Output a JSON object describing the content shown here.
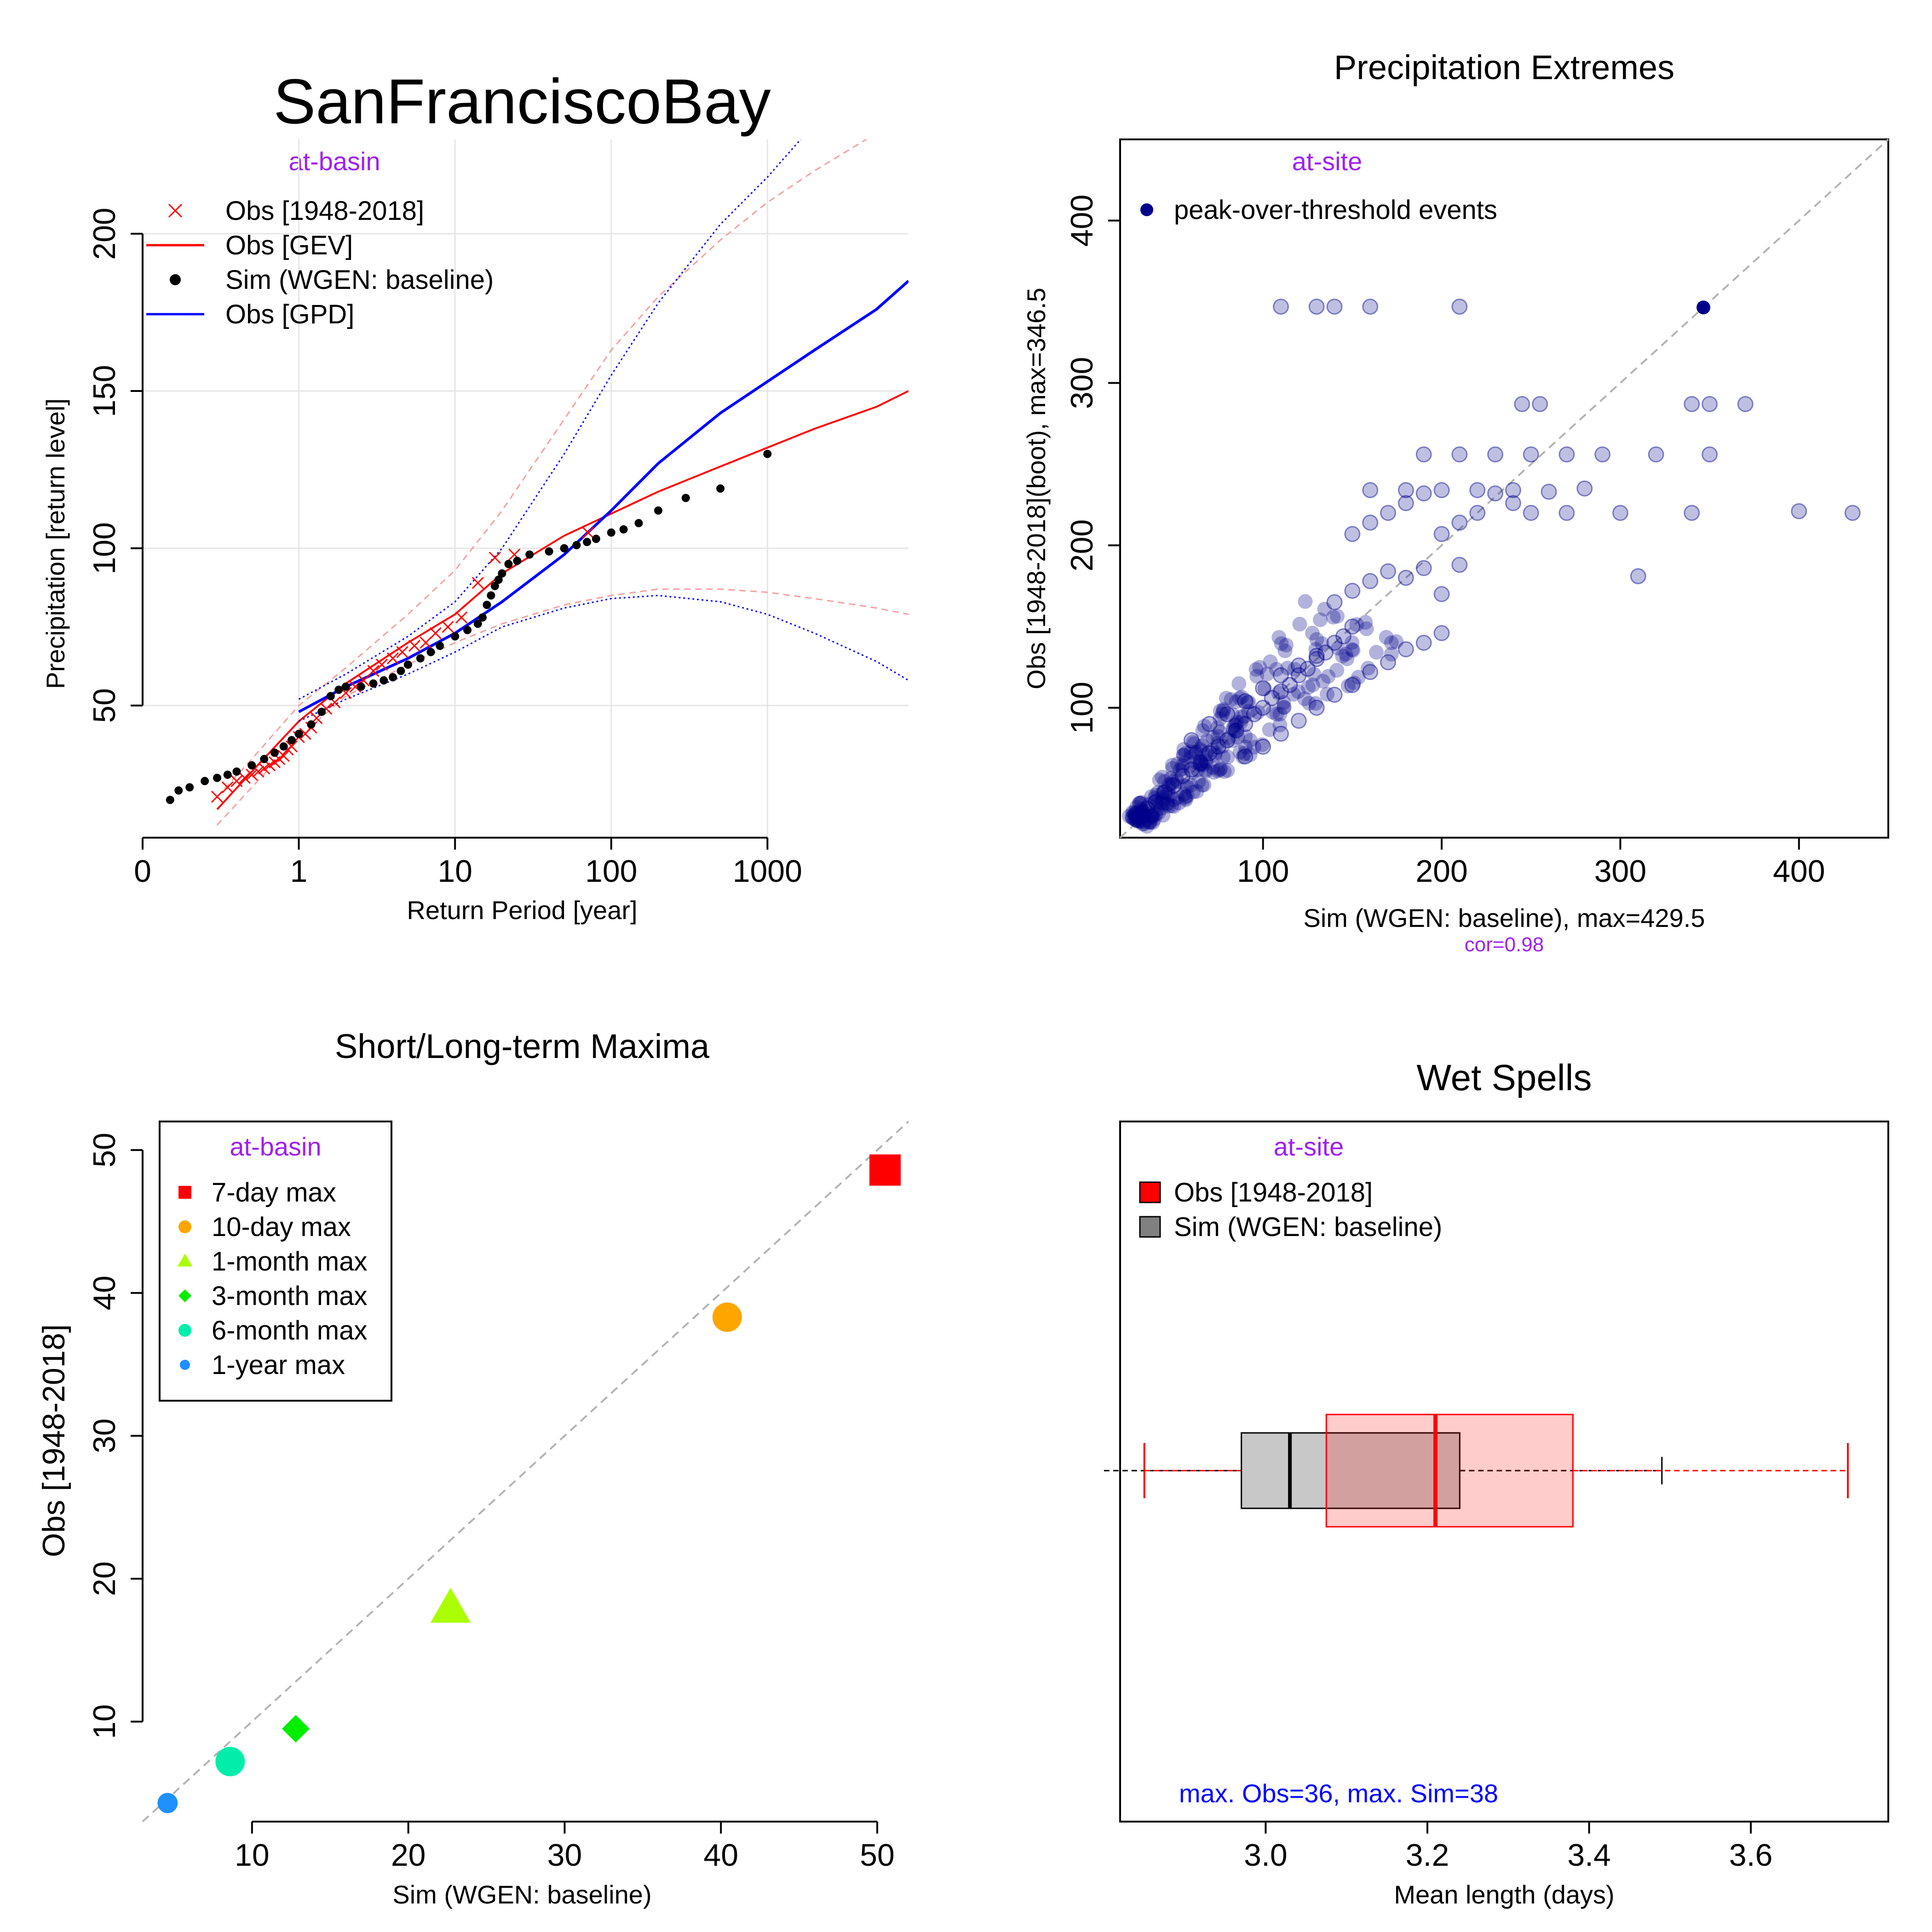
{
  "chart_data": [
    {
      "type": "line",
      "title": "SanFranciscoBay",
      "subtitle": "at-basin",
      "xlabel": "Return Period [year]",
      "ylabel": "Precipitation [return level]",
      "x_scale": "log",
      "x_ticks": [
        0.1,
        1,
        10,
        100,
        1000
      ],
      "x_tick_labels": [
        "0",
        "1",
        "10",
        "100",
        "1000"
      ],
      "xlim": [
        0.1,
        8000
      ],
      "y_ticks": [
        50,
        100,
        150,
        200
      ],
      "y_tick_labels": [
        "50",
        "100",
        "150",
        "200"
      ],
      "ylim": [
        8,
        230
      ],
      "grid": true,
      "legend_position": "top-left",
      "legend": [
        {
          "label": "Obs [1948-2018]",
          "symbol": "cross",
          "color": "#ff0000"
        },
        {
          "label": "Obs [GEV]",
          "symbol": "line",
          "color": "#ff0000"
        },
        {
          "label": "Sim (WGEN: baseline)",
          "symbol": "dot",
          "color": "#000000"
        },
        {
          "label": "Obs [GPD]",
          "symbol": "line",
          "color": "#0000ff"
        }
      ],
      "series": [
        {
          "name": "Obs [1948-2018]",
          "kind": "cross",
          "color": "#ff0000",
          "x": [
            0.3,
            0.35,
            0.4,
            0.45,
            0.5,
            0.55,
            0.6,
            0.65,
            0.7,
            0.75,
            0.8,
            0.85,
            0.9,
            1.0,
            1.1,
            1.2,
            1.3,
            1.5,
            1.7,
            2.0,
            2.3,
            2.6,
            3.0,
            3.4,
            4.0,
            4.6,
            5.5,
            6.5,
            7.5,
            9,
            11,
            14,
            18,
            24,
            71
          ],
          "y": [
            21,
            24,
            26,
            27,
            28,
            29,
            30,
            31,
            32,
            33,
            34,
            36,
            37,
            40,
            41,
            43,
            46,
            49,
            51,
            54,
            56,
            58,
            61,
            63,
            65,
            67,
            69,
            70,
            73,
            75,
            78,
            89,
            97,
            98,
            105
          ]
        },
        {
          "name": "Obs [GEV]",
          "kind": "line",
          "color": "#ff0000",
          "x": [
            0.3,
            0.5,
            1,
            2,
            5,
            10,
            20,
            50,
            100,
            200,
            500,
            1000,
            2000,
            5000,
            8000
          ],
          "y": [
            17,
            29,
            45,
            57,
            70,
            79,
            92,
            104,
            111,
            118,
            126,
            132,
            138,
            145,
            150
          ]
        },
        {
          "name": "GEV upper bound",
          "kind": "dashed",
          "color": "#f4a0a0",
          "x": [
            0.3,
            0.5,
            1,
            2,
            5,
            10,
            20,
            50,
            100,
            200,
            500,
            1000,
            2000,
            5000,
            8000
          ],
          "y": [
            21,
            33,
            50,
            62,
            79,
            93,
            112,
            141,
            163,
            180,
            198,
            210,
            220,
            232,
            240
          ]
        },
        {
          "name": "GEV lower bound",
          "kind": "dashed",
          "color": "#f4a0a0",
          "x": [
            0.3,
            0.5,
            1,
            2,
            5,
            10,
            20,
            50,
            100,
            200,
            500,
            1000,
            2000,
            5000,
            8000
          ],
          "y": [
            12,
            24,
            40,
            53,
            63,
            70,
            76,
            82,
            85,
            87,
            87,
            86,
            84,
            81,
            79
          ]
        },
        {
          "name": "Sim (WGEN: baseline)",
          "kind": "dots",
          "color": "#000000",
          "x": [
            0.15,
            0.17,
            0.2,
            0.25,
            0.3,
            0.35,
            0.4,
            0.5,
            0.6,
            0.7,
            0.8,
            0.9,
            1.0,
            1.2,
            1.4,
            1.6,
            1.8,
            2.0,
            2.5,
            3.0,
            3.5,
            4.0,
            4.5,
            5.0,
            6,
            7,
            8,
            10,
            12,
            14,
            15,
            16,
            17,
            18,
            19,
            20,
            22,
            25,
            30,
            40,
            50,
            60,
            70,
            80,
            100,
            120,
            150,
            200,
            300,
            500,
            1000
          ],
          "y": [
            20,
            23,
            24,
            26,
            27,
            28,
            29,
            31,
            33,
            35,
            37,
            39,
            41,
            44,
            48,
            53,
            55,
            56,
            56,
            57,
            58,
            59,
            61,
            63,
            65,
            67,
            69,
            72,
            74,
            76,
            78,
            82,
            85,
            88,
            90,
            92,
            95,
            96,
            98,
            99,
            100,
            101,
            102,
            103,
            105,
            106,
            108,
            112,
            116,
            119,
            130
          ]
        },
        {
          "name": "Obs [GPD]",
          "kind": "line",
          "color": "#0000ff",
          "x": [
            1,
            2,
            5,
            10,
            20,
            50,
            100,
            200,
            500,
            1000,
            2000,
            5000,
            8000
          ],
          "y": [
            48,
            56,
            65,
            73,
            83,
            98,
            112,
            127,
            143,
            153,
            163,
            176,
            185
          ]
        },
        {
          "name": "GPD upper bound",
          "kind": "dotted",
          "color": "#0000ff",
          "x": [
            1,
            2,
            5,
            10,
            20,
            50,
            100,
            200,
            500,
            1000,
            2000,
            3000
          ],
          "y": [
            52,
            60,
            72,
            83,
            100,
            130,
            155,
            178,
            203,
            218,
            235,
            250
          ]
        },
        {
          "name": "GPD lower bound",
          "kind": "dotted",
          "color": "#0000ff",
          "x": [
            1,
            2,
            5,
            10,
            20,
            50,
            100,
            200,
            500,
            1000,
            2000,
            5000,
            8000
          ],
          "y": [
            45,
            52,
            60,
            67,
            75,
            81,
            84,
            85,
            83,
            79,
            73,
            64,
            58
          ]
        }
      ]
    },
    {
      "type": "scatter",
      "title": "Precipitation Extremes",
      "subtitle": "at-site",
      "xlabel": "Sim (WGEN: baseline), max=429.5",
      "ylabel": "Obs [1948-2018](boot), max=346.5",
      "annotation": "cor=0.98",
      "xlim": [
        20,
        450
      ],
      "ylim": [
        20,
        450
      ],
      "x_ticks": [
        100,
        200,
        300,
        400
      ],
      "x_tick_labels": [
        "100",
        "200",
        "300",
        "400"
      ],
      "y_ticks": [
        100,
        200,
        300,
        400
      ],
      "y_tick_labels": [
        "100",
        "200",
        "300",
        "400"
      ],
      "reference_line": "y = x",
      "legend_position": "top-left",
      "legend": [
        {
          "label": "peak-over-threshold events",
          "symbol": "dot",
          "color": "#00008b"
        }
      ],
      "series": [
        {
          "name": "peak-over-threshold events",
          "color": "#00008b",
          "x": [
            30,
            35,
            40,
            45,
            50,
            55,
            60,
            65,
            70,
            75,
            80,
            85,
            90,
            95,
            100,
            105,
            110,
            115,
            120,
            125,
            130,
            135,
            140,
            145,
            150,
            60,
            70,
            80,
            90,
            100,
            110,
            120,
            130,
            90,
            100,
            110,
            120,
            130,
            140,
            150,
            160,
            170,
            180,
            190,
            200,
            140,
            150,
            160,
            170,
            180,
            190,
            200,
            210,
            150,
            160,
            170,
            180,
            190,
            200,
            210,
            220,
            230,
            240,
            250,
            270,
            300,
            340,
            400,
            430,
            160,
            180,
            200,
            220,
            240,
            260,
            280,
            310,
            190,
            210,
            230,
            250,
            270,
            290,
            320,
            350,
            245,
            255,
            340,
            350,
            370,
            110,
            140,
            130,
            160,
            210
          ],
          "y": [
            32,
            38,
            42,
            48,
            52,
            58,
            62,
            66,
            72,
            76,
            80,
            86,
            90,
            96,
            100,
            106,
            110,
            114,
            120,
            124,
            130,
            134,
            140,
            144,
            150,
            80,
            90,
            96,
            104,
            112,
            120,
            126,
            132,
            70,
            76,
            84,
            92,
            100,
            108,
            114,
            122,
            128,
            136,
            140,
            146,
            165,
            172,
            178,
            184,
            180,
            186,
            170,
            188,
            207,
            214,
            220,
            226,
            232,
            207,
            214,
            220,
            232,
            226,
            220,
            220,
            220,
            220,
            221,
            220,
            234,
            234,
            234,
            234,
            234,
            233,
            235,
            181,
            256,
            256,
            256,
            256,
            256,
            256,
            256,
            256,
            287,
            287,
            287,
            287,
            287,
            347,
            347,
            347,
            347,
            347
          ]
        }
      ]
    },
    {
      "type": "scatter",
      "title": "Short/Long-term Maxima",
      "subtitle": "at-basin",
      "xlabel": "Sim (WGEN: baseline)",
      "ylabel": "Obs [1948-2018]",
      "xlim": [
        3,
        52
      ],
      "ylim": [
        3,
        52
      ],
      "x_ticks": [
        10,
        20,
        30,
        40,
        50
      ],
      "x_tick_labels": [
        "10",
        "20",
        "30",
        "40",
        "50"
      ],
      "y_ticks": [
        10,
        20,
        30,
        40,
        50
      ],
      "y_tick_labels": [
        "10",
        "20",
        "30",
        "40",
        "50"
      ],
      "reference_line": "y = x",
      "legend_position": "top-left",
      "series": [
        {
          "name": "7-day max",
          "shape": "square",
          "color": "#ff0000",
          "x": 50.5,
          "y": 48.6
        },
        {
          "name": "10-day max",
          "shape": "circle",
          "color": "#ffa500",
          "x": 40.4,
          "y": 38.3
        },
        {
          "name": "1-month max",
          "shape": "triangle",
          "color": "#aaff00",
          "x": 22.7,
          "y": 17.9
        },
        {
          "name": "3-month max",
          "shape": "diamond",
          "color": "#00ee00",
          "x": 12.8,
          "y": 9.5
        },
        {
          "name": "6-month max",
          "shape": "circle",
          "color": "#00eeaa",
          "x": 8.6,
          "y": 7.2
        },
        {
          "name": "1-year max",
          "shape": "circle",
          "color": "#1e90ff",
          "x": 4.6,
          "y": 4.3
        }
      ]
    },
    {
      "type": "box",
      "title": "Wet Spells",
      "subtitle": "at-site",
      "xlabel": "Mean length (days)",
      "annotation": "max. Obs=36, max. Sim=38",
      "xlim": [
        2.82,
        3.77
      ],
      "x_ticks": [
        3.0,
        3.2,
        3.4,
        3.6
      ],
      "x_tick_labels": [
        "3.0",
        "3.2",
        "3.4",
        "3.6"
      ],
      "legend_position": "top-left",
      "legend": [
        {
          "label": "Obs [1948-2018]",
          "color": "#ff0000"
        },
        {
          "label": "Sim (WGEN: baseline)",
          "color": "#808080"
        }
      ],
      "series": [
        {
          "name": "Obs [1948-2018]",
          "color": "#ff0000",
          "fill": "#ffcccc",
          "min": 2.85,
          "q1": 3.075,
          "median": 3.21,
          "q3": 3.38,
          "max": 3.72
        },
        {
          "name": "Sim (WGEN: baseline)",
          "color": "#000000",
          "fill": "#c8c8c8",
          "min": 2.8,
          "q1": 2.97,
          "median": 3.03,
          "q3": 3.24,
          "max": 3.49
        }
      ]
    }
  ]
}
